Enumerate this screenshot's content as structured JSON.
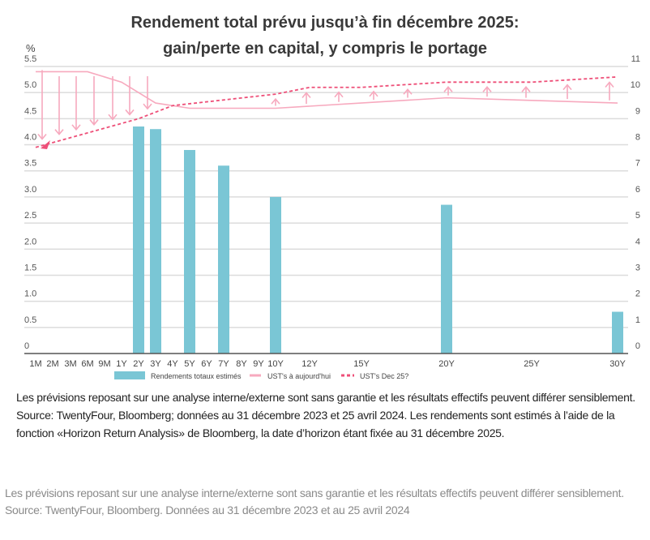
{
  "chart_data": {
    "type": "bar+line",
    "title": "Rendement total prévu jusqu’à fin décembre 2025:",
    "subtitle": "gain/perte en capital, y compris le portage",
    "ylabel_left": "%",
    "ylim_left": [
      0,
      5.5
    ],
    "yticks_left": [
      "0",
      "0.5",
      "1.0",
      "1.5",
      "2.0",
      "2.5",
      "3.0",
      "3.5",
      "4.0",
      "4.5",
      "5.0",
      "5.5"
    ],
    "ylim_right": [
      0,
      11
    ],
    "yticks_right": [
      "0",
      "1",
      "2",
      "3",
      "4",
      "5",
      "6",
      "7",
      "8",
      "9",
      "10",
      "11"
    ],
    "x_ticks": [
      "1M",
      "2M",
      "3M",
      "6M",
      "9M",
      "1Y",
      "2Y",
      "3Y",
      "4Y",
      "5Y",
      "6Y",
      "7Y",
      "8Y",
      "9Y",
      "10Y",
      "12Y",
      "15Y",
      "20Y",
      "25Y",
      "30Y"
    ],
    "grid": true,
    "legend_position": "bottom",
    "colors": {
      "bars": "#7ac6d5",
      "today": "#f7a9be",
      "dec25": "#ee4f78",
      "arrows": "#f7a9be"
    },
    "series": [
      {
        "name": "Rendements totaux estimés",
        "type": "bar",
        "axis": "right",
        "x": [
          "2Y",
          "3Y",
          "5Y",
          "7Y",
          "10Y",
          "20Y",
          "30Y"
        ],
        "values": [
          8.7,
          8.6,
          7.8,
          7.2,
          6.0,
          5.7,
          1.6
        ]
      },
      {
        "name": "UST's à aujourd'hui",
        "type": "line",
        "axis": "left",
        "x": [
          "1M",
          "6M",
          "1Y",
          "3Y",
          "5Y",
          "10Y",
          "20Y",
          "30Y"
        ],
        "values": [
          5.4,
          5.4,
          5.2,
          4.8,
          4.7,
          4.7,
          4.9,
          4.8
        ]
      },
      {
        "name": "UST's Dec 25?",
        "type": "line-dashed",
        "axis": "left",
        "x": [
          "1M",
          "2Y",
          "4Y",
          "10Y",
          "12Y",
          "15Y",
          "20Y",
          "25Y",
          "30Y"
        ],
        "values": [
          3.95,
          4.5,
          4.75,
          4.97,
          5.1,
          5.1,
          5.2,
          5.2,
          5.3
        ]
      }
    ]
  },
  "notes": {
    "line1": "Les prévisions reposant sur une analyse interne/externe sont sans garantie et les résultats effectifs peuvent différer sensiblement.",
    "line2": "Source: TwentyFour, Bloomberg; données au 31 décembre 2023 et 25 avril 2024. Les rendements sont estimés à l’aide de la fonction «Horizon Return Analysis» de Bloomberg, la date d’horizon étant fixée au 31 décembre 2025."
  },
  "footer": {
    "line1": "Les prévisions reposant sur une analyse interne/externe sont sans garantie et les résultats effectifs peuvent différer sensiblement.",
    "line2": "Source: TwentyFour, Bloomberg. Données au 31 décembre 2023 et au 25 avril 2024"
  }
}
